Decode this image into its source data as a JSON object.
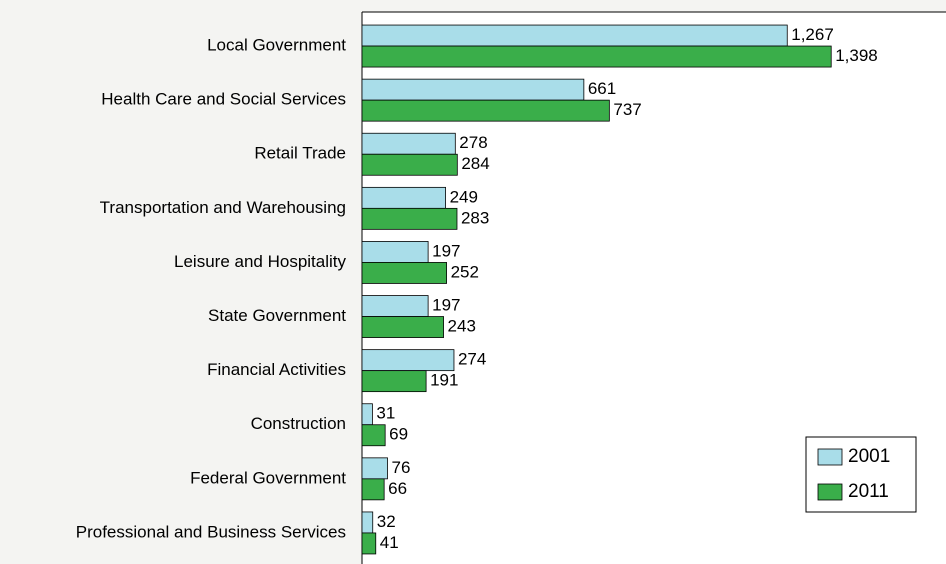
{
  "chart_data": {
    "type": "bar",
    "orientation": "horizontal",
    "categories": [
      "Local Government",
      "Health Care and Social Services",
      "Retail Trade",
      "Transportation and Warehousing",
      "Leisure and Hospitality",
      "State Government",
      "Financial Activities",
      "Construction",
      "Federal Government",
      "Professional and Business Services"
    ],
    "series": [
      {
        "name": "2001",
        "color": "#a9dde9",
        "values": [
          1267,
          661,
          278,
          249,
          197,
          197,
          274,
          31,
          76,
          32
        ],
        "value_labels": [
          "1,267",
          "661",
          "278",
          "249",
          "197",
          "197",
          "274",
          "31",
          "76",
          "32"
        ]
      },
      {
        "name": "2011",
        "color": "#3aae4a",
        "values": [
          1398,
          737,
          284,
          283,
          252,
          243,
          191,
          69,
          66,
          41
        ],
        "value_labels": [
          "1,398",
          "737",
          "284",
          "283",
          "252",
          "243",
          "191",
          "69",
          "66",
          "41"
        ]
      }
    ],
    "xlim": [
      0,
      1740
    ],
    "legend": "lower right"
  }
}
